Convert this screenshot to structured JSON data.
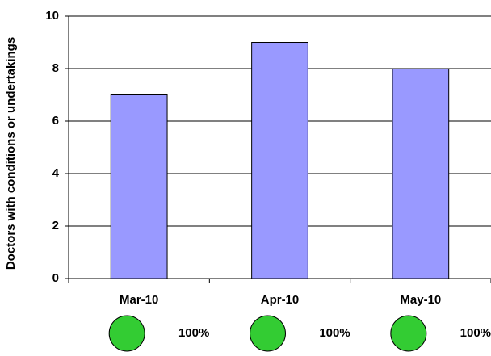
{
  "chart_data": {
    "type": "bar",
    "y_label": "Doctors with conditions or undertakings",
    "categories": [
      "Mar-10",
      "Apr-10",
      "May-10"
    ],
    "values": [
      7,
      9,
      8
    ],
    "color": "#9999ff",
    "ylim": [
      0,
      10
    ],
    "yticks": [
      0,
      2,
      4,
      6,
      8,
      10
    ],
    "grid": true,
    "indicator_labels": [
      "100%",
      "100%",
      "100%"
    ],
    "indicator_color": "#33cc33"
  }
}
